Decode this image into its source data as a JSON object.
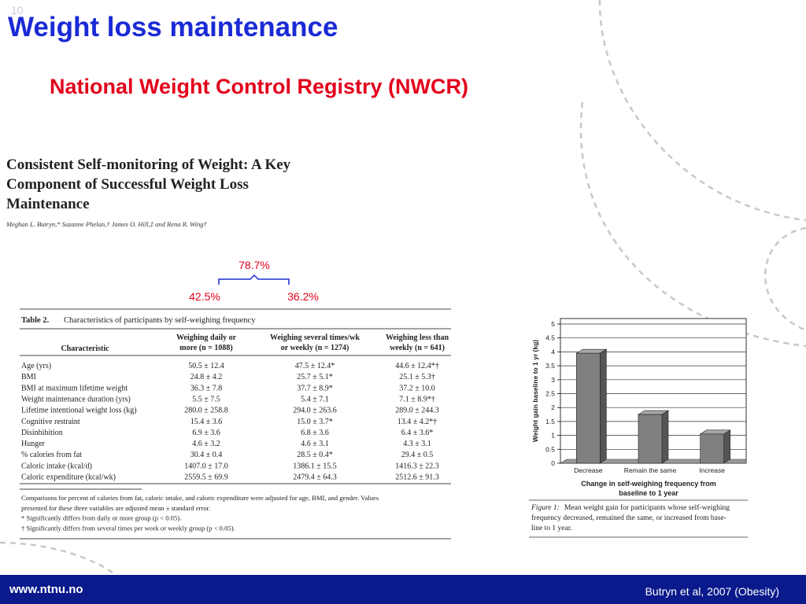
{
  "slide_number": "10",
  "header": {
    "title": "Weight loss maintenance",
    "subtitle": "National Weight Control Registry (NWCR)"
  },
  "paper": {
    "title_lines": [
      "Consistent Self-monitoring of Weight: A Key",
      "Component of Successful Weight Loss",
      "Maintenance"
    ],
    "authors": "Meghan L. Butryn,* Suzanne Phelan,† James O. Hill,‡ and Rena R. Wing†"
  },
  "annotations": {
    "combined": "78.7%",
    "daily": "42.5%",
    "several": "36.2%"
  },
  "table": {
    "label": "Table 2.",
    "caption": "Characteristics of participants by self-weighing frequency",
    "headers": [
      [
        "Characteristic"
      ],
      [
        "Weighing daily or",
        "more (n = 1088)"
      ],
      [
        "Weighing several times/wk",
        "or weekly (n = 1274)"
      ],
      [
        "Weighing less than",
        "weekly (n = 641)"
      ]
    ],
    "rows": [
      [
        "Age (yrs)",
        "50.5 ± 12.4",
        "47.5 ± 12.4*",
        "44.6 ± 12.4*†"
      ],
      [
        "BMI",
        "24.8 ± 4.2",
        "25.7 ± 5.1*",
        "25.1 ± 5.3†"
      ],
      [
        "BMI at maximum lifetime weight",
        "36.3 ± 7.8",
        "37.7 ± 8.9*",
        "37.2 ± 10.0"
      ],
      [
        "Weight maintenance duration (yrs)",
        "5.5 ± 7.5",
        "5.4 ± 7.1",
        "7.1 ± 8.9*†"
      ],
      [
        "Lifetime intentional weight loss (kg)",
        "280.0 ± 258.8",
        "294.0 ± 263.6",
        "289.0 ± 244.3"
      ],
      [
        "Cognitive restraint",
        "15.4 ± 3.6",
        "15.0 ± 3.7*",
        "13.4 ± 4.2*†"
      ],
      [
        "Disinhibition",
        "6.9 ± 3.6",
        "6.8 ± 3.6",
        "6.4 ± 3.6*"
      ],
      [
        "Hunger",
        "4.6 ± 3.2",
        "4.6 ± 3.1",
        "4.3 ± 3.1"
      ],
      [
        "% calories from fat",
        "30.4 ± 0.4",
        "28.5 ± 0.4*",
        "29.4 ± 0.5"
      ],
      [
        "Caloric intake (kcal/d)",
        "1407.0 ± 17.0",
        "1386.1 ± 15.5",
        "1416.3 ± 22.3"
      ],
      [
        "Caloric expenditure (kcal/wk)",
        "2559.5 ± 69.9",
        "2479.4 ± 64.3",
        "2512.6 ± 91.3"
      ]
    ],
    "notes": [
      "Comparisons for percent of calories from fat, caloric intake, and caloric expenditure were adjusted for age, BMI, and gender. Values",
      "presented for these three variables are adjusted mean ± standard error.",
      "* Significantly differs from daily or more group (p < 0.05).",
      "† Significantly differs from several times per week or weekly group (p < 0.05)."
    ]
  },
  "chart_data": {
    "type": "bar",
    "ylabel": "Weight gain baseline to 1 yr (kg)",
    "xlabel_lines": [
      "Change in self-weighing frequency from",
      "baseline to 1 year"
    ],
    "categories": [
      "Decrease",
      "Remain the same",
      "Increase"
    ],
    "values": [
      3.95,
      1.75,
      1.05
    ],
    "color": "#808080",
    "ylim": [
      0,
      5
    ],
    "yticks": [
      0,
      0.5,
      1,
      1.5,
      2,
      2.5,
      3,
      3.5,
      4,
      4.5,
      5
    ],
    "grid": true
  },
  "figure": {
    "label": "Figure 1:",
    "caption_lines": [
      "Mean weight gain for participants whose self-weighing",
      "frequency decreased, remained the same, or increased from base-",
      "line to 1 year."
    ]
  },
  "footer": {
    "url": "www.ntnu.no",
    "citation": "Butryn et al, 2007 (Obesity)"
  }
}
